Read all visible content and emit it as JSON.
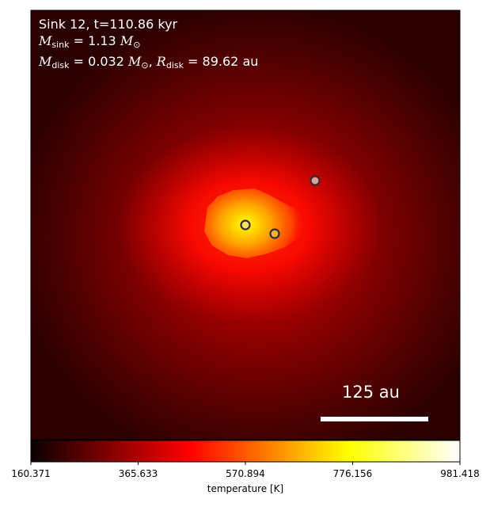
{
  "annotation": {
    "line1": "Sink 12, t=110.86 kyr",
    "m_sink_symbol": "M",
    "m_sink_sub": "sink",
    "m_sink_value": " = 1.13 ",
    "m_sun_symbol": "M",
    "sun_sub": "⊙",
    "m_disk_symbol": "M",
    "m_disk_sub": "disk",
    "m_disk_value": " = 0.032 ",
    "r_disk_symbol": "R",
    "r_disk_sub": "disk",
    "r_disk_value": " = 89.62 au",
    "comma": ", "
  },
  "scale_bar": {
    "label": "125 au"
  },
  "colorbar": {
    "label": "temperature [K]",
    "colormap": "hot",
    "vmin": 160.371,
    "vmax": 981.418,
    "ticks": [
      "160.371",
      "365.633",
      "570.894",
      "776.156",
      "981.418"
    ]
  },
  "sinks": [
    {
      "fill": "#f7e36a"
    },
    {
      "fill": "#f2b33c"
    },
    {
      "fill": "#e0a0a0"
    }
  ],
  "colors": {
    "background_dark": "#2a0000",
    "sink_outline": "#3a2a2a",
    "scale_bar": "#ffffff"
  }
}
